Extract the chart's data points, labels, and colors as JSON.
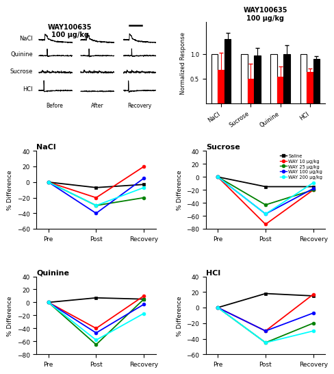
{
  "bar_title": "WAY100635\n100 μg/kg",
  "bar_ylabel": "Normalized Response",
  "bar_categories": [
    "NaCl",
    "Sucrose",
    "Quinine",
    "HCl"
  ],
  "bar_white_values": [
    1.0,
    1.0,
    1.0,
    1.0
  ],
  "bar_red_values": [
    0.67,
    0.5,
    0.54,
    0.63
  ],
  "bar_black_values": [
    1.3,
    0.97,
    1.0,
    0.9
  ],
  "bar_red_errors": [
    0.35,
    0.3,
    0.2,
    0.08
  ],
  "bar_black_errors": [
    0.12,
    0.15,
    0.18,
    0.05
  ],
  "line_colors": [
    "black",
    "red",
    "green",
    "blue",
    "cyan"
  ],
  "line_labels": [
    "Saline",
    "WAY 10 μg/kg",
    "WAY 25 μg/kg",
    "WAY 100 μg/kg",
    "WAY 200 μg/kg"
  ],
  "x_labels": [
    "Pre",
    "Post",
    "Recovery"
  ],
  "nacl_data": {
    "title": "NaCl",
    "ylim": [
      -60,
      40
    ],
    "yticks": [
      -60,
      -40,
      -20,
      0,
      20,
      40
    ],
    "saline": [
      0,
      -7,
      -3
    ],
    "way10": [
      0,
      -20,
      20
    ],
    "way25": [
      0,
      -30,
      -20
    ],
    "way100": [
      0,
      -40,
      5
    ],
    "way200": [
      0,
      -30,
      -7
    ]
  },
  "sucrose_data": {
    "title": "Sucrose",
    "ylim": [
      -80,
      40
    ],
    "yticks": [
      -80,
      -60,
      -40,
      -20,
      0,
      20,
      40
    ],
    "saline": [
      0,
      -15,
      -15
    ],
    "way10": [
      0,
      -73,
      -20
    ],
    "way25": [
      0,
      -43,
      -20
    ],
    "way100": [
      0,
      -57,
      -18
    ],
    "way200": [
      0,
      -57,
      -9
    ]
  },
  "quinine_data": {
    "title": "Quinine",
    "ylim": [
      -80,
      40
    ],
    "yticks": [
      -80,
      -60,
      -40,
      -20,
      0,
      20,
      40
    ],
    "saline": [
      0,
      7,
      5
    ],
    "way10": [
      0,
      -40,
      10
    ],
    "way25": [
      0,
      -65,
      5
    ],
    "way100": [
      0,
      -47,
      -3
    ],
    "way200": [
      0,
      -58,
      -17
    ]
  },
  "hcl_data": {
    "title": "HCl",
    "ylim": [
      -60,
      40
    ],
    "yticks": [
      -60,
      -40,
      -20,
      0,
      20,
      40
    ],
    "saline": [
      0,
      18,
      15
    ],
    "way10": [
      0,
      -30,
      17
    ],
    "way25": [
      0,
      -45,
      -20
    ],
    "way100": [
      0,
      -30,
      -7
    ],
    "way200": [
      0,
      -45,
      -30
    ]
  },
  "trace_title": "WAY100635\n100 μg/kg",
  "trace_labels": [
    "NaCl",
    "Quinine",
    "Sucrose",
    "HCl"
  ],
  "trace_x_labels": [
    "Before",
    "After",
    "Recovery"
  ]
}
